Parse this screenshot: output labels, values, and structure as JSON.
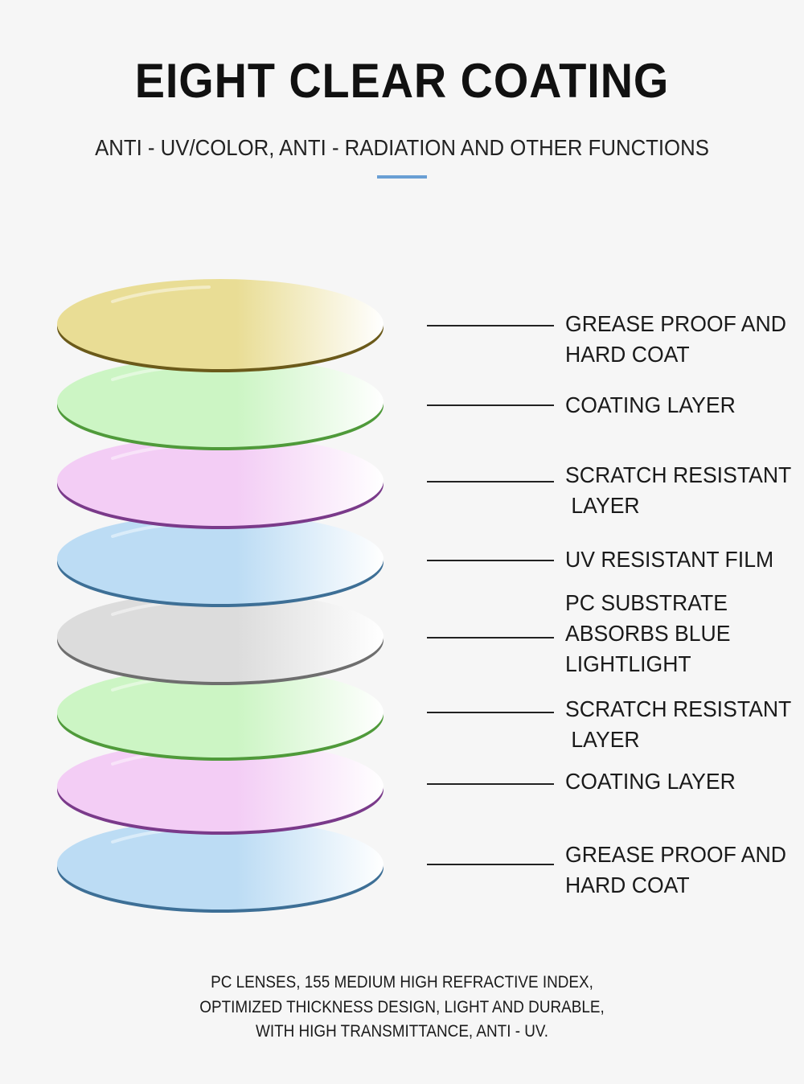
{
  "header": {
    "title": "EIGHT CLEAR COATING",
    "subtitle": "ANTI - UV/COLOR, ANTI - RADIATION AND OTHER FUNCTIONS",
    "accent_color": "#6a9fd4"
  },
  "layers": [
    {
      "lines": [
        "GREASE PROOF AND",
        "HARD COAT"
      ],
      "fill": "#e9dd95",
      "edge": "#6b5a1a"
    },
    {
      "lines": [
        "COATING LAYER"
      ],
      "fill": "#ccf5c4",
      "edge": "#4f9a3a"
    },
    {
      "lines": [
        "SCRATCH RESISTANT",
        " LAYER"
      ],
      "fill": "#f3cdf5",
      "edge": "#7a3a8a"
    },
    {
      "lines": [
        "UV RESISTANT FILM"
      ],
      "fill": "#bcdcf4",
      "edge": "#3d6f96"
    },
    {
      "lines": [
        "PC SUBSTRATE",
        "ABSORBS BLUE",
        "LIGHTLIGHT"
      ],
      "fill": "#dcdcdc",
      "edge": "#6e6e6e"
    },
    {
      "lines": [
        "SCRATCH RESISTANT",
        " LAYER"
      ],
      "fill": "#ccf5c4",
      "edge": "#4f9a3a"
    },
    {
      "lines": [
        "COATING LAYER"
      ],
      "fill": "#f3cdf5",
      "edge": "#7a3a8a"
    },
    {
      "lines": [
        "GREASE PROOF AND",
        "HARD COAT"
      ],
      "fill": "#bcdcf4",
      "edge": "#3d6f96"
    }
  ],
  "footer": {
    "lines": [
      "PC LENSES, 155 MEDIUM HIGH REFRACTIVE INDEX,",
      "OPTIMIZED THICKNESS DESIGN, LIGHT AND DURABLE,",
      "WITH HIGH TRANSMITTANCE, ANTI - UV."
    ]
  }
}
